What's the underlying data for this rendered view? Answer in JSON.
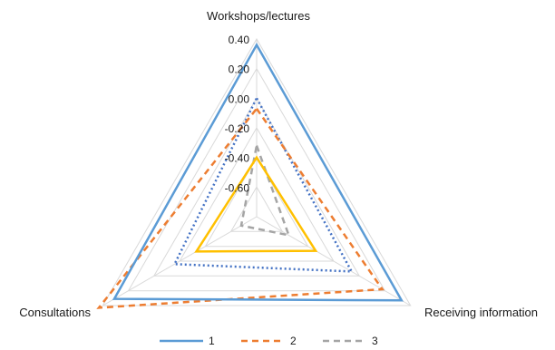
{
  "chart_data": {
    "type": "radar",
    "axes": [
      "Workshops/lectures",
      "Receiving information",
      "Consultations"
    ],
    "rlim": [
      -0.8,
      0.4
    ],
    "tick_labels": [
      "0.40",
      "0.20",
      "0.00",
      "-0.20",
      "-0.40",
      "-0.60"
    ],
    "tick_values": [
      0.4,
      0.2,
      0.0,
      -0.2,
      -0.4,
      -0.6,
      -0.8
    ],
    "grid": true,
    "legend_position": "bottom",
    "series": [
      {
        "name": "1",
        "values": [
          0.36,
          0.33,
          0.31
        ],
        "color": "#5B9BD5",
        "dash": "solid"
      },
      {
        "name": "2",
        "values": [
          -0.07,
          0.18,
          0.43
        ],
        "color": "#ED7D31",
        "dash": "dashed"
      },
      {
        "name": "3",
        "values": [
          -0.32,
          -0.55,
          -0.68
        ],
        "color": "#A5A5A5",
        "dash": "dashed"
      },
      {
        "name": "",
        "values": [
          0.0,
          -0.06,
          -0.16
        ],
        "color": "#4472C4",
        "dash": "dotted"
      },
      {
        "name": "",
        "values": [
          -0.4,
          -0.34,
          -0.33
        ],
        "color": "#FFC000",
        "dash": "solid"
      }
    ]
  }
}
